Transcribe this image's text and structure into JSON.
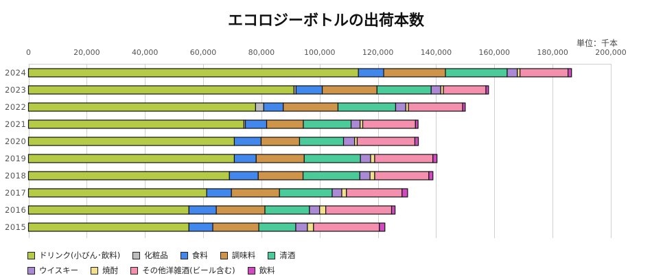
{
  "chart_data": {
    "type": "bar",
    "orientation": "horizontal",
    "stacked": true,
    "title": "エコロジーボトルの出荷本数",
    "unit_label": "単位：千本",
    "xlabel": "",
    "ylabel": "",
    "xlim": [
      0,
      200000
    ],
    "x_ticks": [
      "0",
      "20,000",
      "40,000",
      "60,000",
      "80,000",
      "100,000",
      "120,000",
      "140,000",
      "160,000",
      "180,000",
      "200,000"
    ],
    "x_tick_values": [
      0,
      20000,
      40000,
      60000,
      80000,
      100000,
      120000,
      140000,
      160000,
      180000,
      200000
    ],
    "grid": true,
    "legend_position": "bottom-left",
    "categories": [
      "2024",
      "2023",
      "2022",
      "2021",
      "2020",
      "2019",
      "2018",
      "2017",
      "2016",
      "2015"
    ],
    "series": [
      {
        "name": "ドリンク(小びん･飲料)",
        "color": "#b5cb48",
        "values": [
          113300,
          91200,
          78000,
          74000,
          70700,
          70700,
          69000,
          61200,
          55100,
          55100
        ]
      },
      {
        "name": "化粧品",
        "color": "#bdbdbd",
        "values": [
          0,
          700,
          2800,
          500,
          0,
          0,
          0,
          0,
          0,
          0
        ]
      },
      {
        "name": "食料",
        "color": "#4287ec",
        "values": [
          8700,
          9000,
          6700,
          7300,
          9200,
          7500,
          9900,
          8500,
          9400,
          8200
        ]
      },
      {
        "name": "調味料",
        "color": "#cd944a",
        "values": [
          21200,
          18800,
          18800,
          12600,
          13200,
          16500,
          15400,
          16500,
          16700,
          15800
        ]
      },
      {
        "name": "清酒",
        "color": "#4bca9a",
        "values": [
          21200,
          18600,
          19800,
          16400,
          15100,
          19300,
          19500,
          18100,
          15300,
          12700
        ]
      },
      {
        "name": "ウイスキー",
        "color": "#ac89d5",
        "values": [
          3500,
          3300,
          3500,
          3100,
          3800,
          3500,
          3500,
          3300,
          3500,
          4000
        ]
      },
      {
        "name": "焼酎",
        "color": "#f2e08f",
        "values": [
          900,
          900,
          900,
          900,
          900,
          1400,
          1600,
          1600,
          2100,
          2100
        ]
      },
      {
        "name": "その他洋雑酒(ビール含む)",
        "color": "#f48fae",
        "values": [
          16500,
          14600,
          18600,
          18100,
          19800,
          20000,
          18600,
          19100,
          22600,
          22600
        ]
      },
      {
        "name": "飲料",
        "color": "#d24ac0",
        "values": [
          1200,
          900,
          900,
          900,
          1200,
          1400,
          1400,
          1900,
          1200,
          1900
        ]
      }
    ]
  }
}
